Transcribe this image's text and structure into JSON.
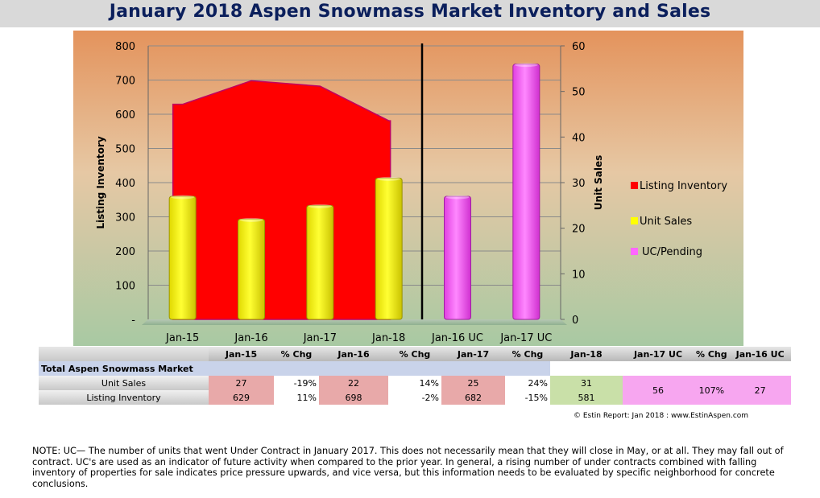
{
  "title": "January 2018 Aspen Snowmass Market Inventory and Sales",
  "chart_data": {
    "type": "bar",
    "categories": [
      "Jan-15",
      "Jan-16",
      "Jan-17",
      "Jan-18",
      "Jan-16 UC",
      "Jan-17 UC"
    ],
    "series": [
      {
        "name": "Listing Inventory",
        "kind": "area",
        "axis": "left",
        "values": [
          629,
          698,
          682,
          581,
          null,
          null
        ],
        "color": "#ff0000"
      },
      {
        "name": "Unit Sales",
        "kind": "bar",
        "axis": "right",
        "values": [
          27,
          22,
          25,
          31,
          null,
          null
        ],
        "color": "#ffff00"
      },
      {
        "name": "UC/Pending",
        "kind": "bar",
        "axis": "right",
        "values": [
          null,
          null,
          null,
          null,
          27,
          56
        ],
        "color": "#ff66ff"
      }
    ],
    "ylabel": "Listing Inventory",
    "y2label": "Unit Sales",
    "ylim": [
      0,
      800
    ],
    "y2lim": [
      0,
      60
    ],
    "yticks": [
      "-",
      "100",
      "200",
      "300",
      "400",
      "500",
      "600",
      "700",
      "800"
    ],
    "y2ticks": [
      "0",
      "10",
      "20",
      "30",
      "40",
      "50",
      "60"
    ],
    "grid": true,
    "legend": "right"
  },
  "table": {
    "headers": [
      "Jan-15",
      "% Chg",
      "Jan-16",
      "% Chg",
      "Jan-17",
      "% Chg",
      "Jan-18",
      "Jan-17 UC",
      "% Chg",
      "Jan-16 UC"
    ],
    "section_label": "Total Aspen Snowmass Market",
    "rows": [
      {
        "label": "Unit Sales",
        "cells": [
          "27",
          "-19%",
          "22",
          "14%",
          "25",
          "24%",
          "31",
          "56",
          "107%",
          "27"
        ]
      },
      {
        "label": "Listing Inventory",
        "cells": [
          "629",
          "11%",
          "698",
          "-2%",
          "682",
          "-15%",
          "581",
          "",
          "",
          ""
        ]
      }
    ]
  },
  "copyright": "© Estin Report: Jan 2018 : www.EstinAspen.com",
  "note": "NOTE: UC— The number of units that went Under Contract in January 2017. This does not necessarily mean that they will close in May, or at all. They may fall out of contract. UC's are used as an indicator of future activity when compared to the prior year. In general, a rising number of under contracts combined with falling inventory of properties for sale indicates price pressure upwards, and vice versa, but this information needs to be evaluated by specific neighborhood for concrete conclusions."
}
